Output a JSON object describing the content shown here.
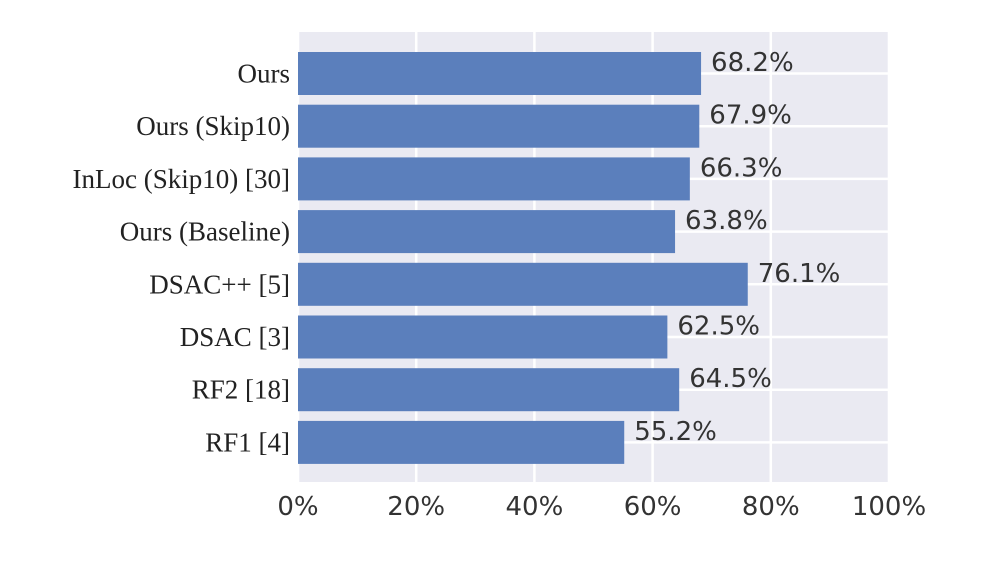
{
  "chart_data": {
    "type": "bar",
    "orientation": "horizontal",
    "categories": [
      "Ours",
      "Ours (Skip10)",
      "InLoc (Skip10) [30]",
      "Ours (Baseline)",
      "DSAC++ [5]",
      "DSAC [3]",
      "RF2 [18]",
      "RF1 [4]"
    ],
    "values": [
      68.2,
      67.9,
      66.3,
      63.8,
      76.1,
      62.5,
      64.5,
      55.2
    ],
    "value_labels": [
      "68.2%",
      "67.9%",
      "66.3%",
      "63.8%",
      "76.1%",
      "62.5%",
      "64.5%",
      "55.2%"
    ],
    "x_ticks": [
      "0%",
      "20%",
      "40%",
      "60%",
      "80%",
      "100%"
    ],
    "xlim": [
      0,
      100
    ],
    "title": "",
    "xlabel": "",
    "ylabel": "",
    "grid": true,
    "bar_color": "#5b7fbc",
    "background_color": "#eaeaf2",
    "grid_color": "#ffffff"
  }
}
